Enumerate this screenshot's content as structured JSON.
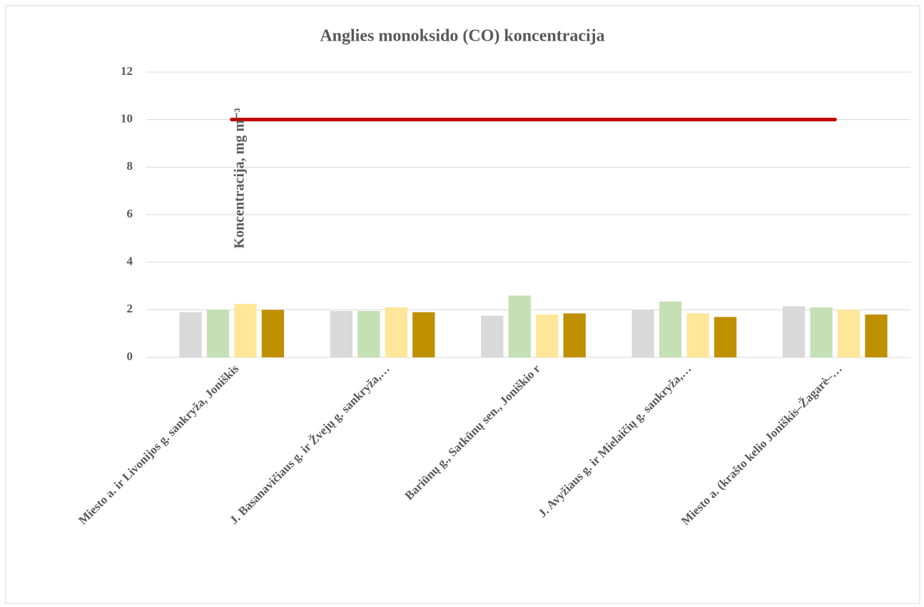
{
  "chart_data": {
    "type": "bar",
    "title": "Anglies monoksido (CO) koncentracija",
    "y_label": "Koncentracija, mg m⁻³",
    "categories": [
      "Miesto a. ir Livonijos g. sankryža, Joniškis",
      "J. Basanavičiaus g. ir Žvejų g. sankryža,…",
      "Bariūnų g., Satkūnų sen., Joniškio r",
      "J. Avyžiaus g.  ir Mielaičių g. sankryža,…",
      "Miesto a. (krašto kelio Joniškis–Žagarė–…"
    ],
    "series": [
      {
        "color": "#d9d9d9",
        "values": [
          1.9,
          1.95,
          1.75,
          2.0,
          2.15
        ]
      },
      {
        "color": "#c5e0b4",
        "values": [
          2.0,
          1.95,
          2.6,
          2.35,
          2.1
        ]
      },
      {
        "color": "#ffe699",
        "values": [
          2.25,
          2.1,
          1.8,
          1.85,
          2.0
        ]
      },
      {
        "color": "#bf9000",
        "values": [
          2.0,
          1.9,
          1.85,
          1.7,
          1.8
        ]
      },
      {
        "type": "line",
        "color": "#c00000",
        "values": [
          10,
          10,
          10,
          10,
          10
        ]
      }
    ],
    "ylim": [
      0,
      12
    ],
    "yticks": [
      0,
      2,
      4,
      6,
      8,
      10,
      12
    ],
    "grid": true
  }
}
